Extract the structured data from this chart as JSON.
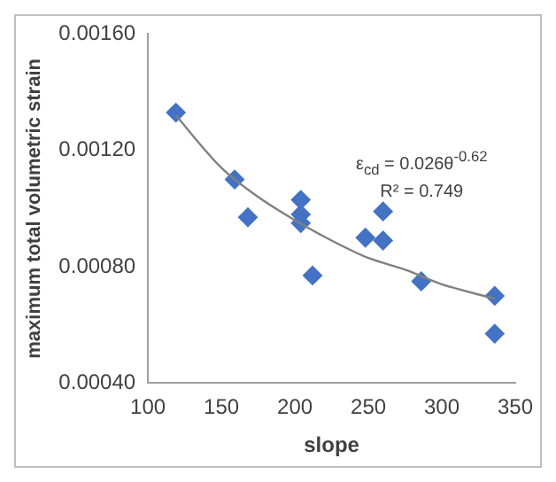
{
  "chart_data": {
    "type": "scatter",
    "xlabel": "slope",
    "ylabel": "maximum total volumetric strain",
    "x": [
      119,
      159,
      168,
      204,
      204,
      204,
      212,
      248,
      260,
      260,
      286,
      336,
      336
    ],
    "series": [
      {
        "type": "scatter",
        "color": "#4472c4",
        "marker": "diamond",
        "values": [
          0.00133,
          0.0011,
          0.00097,
          0.00103,
          0.00098,
          0.00095,
          0.00077,
          0.0009,
          0.00099,
          0.00089,
          0.00075,
          0.0007,
          0.00057
        ]
      },
      {
        "type": "line",
        "color": "#808080",
        "marker": "none",
        "line_style": "solid",
        "x": [
          119,
          150,
          175,
          200,
          225,
          250,
          275,
          300,
          336
        ],
        "values": [
          0.00132,
          0.00114,
          0.00104,
          0.00096,
          0.00089,
          0.00083,
          0.00079,
          0.00074,
          0.00069
        ]
      }
    ],
    "xlim": [
      100,
      350
    ],
    "xticks": [
      100,
      150,
      200,
      250,
      300,
      350
    ],
    "ylim": [
      0.0004,
      0.0016
    ],
    "yticks": [
      {
        "value": 0.0004,
        "label": "0.00040"
      },
      {
        "value": 0.0008,
        "label": "0.00080"
      },
      {
        "value": 0.0012,
        "label": "0.00120"
      },
      {
        "value": 0.0016,
        "label": "0.00160"
      }
    ],
    "grid": false,
    "legend": false,
    "annotations": [
      "ε$_{cd}$ = 0.026θ$^{-0.62}$",
      "R² = 0.749"
    ]
  }
}
